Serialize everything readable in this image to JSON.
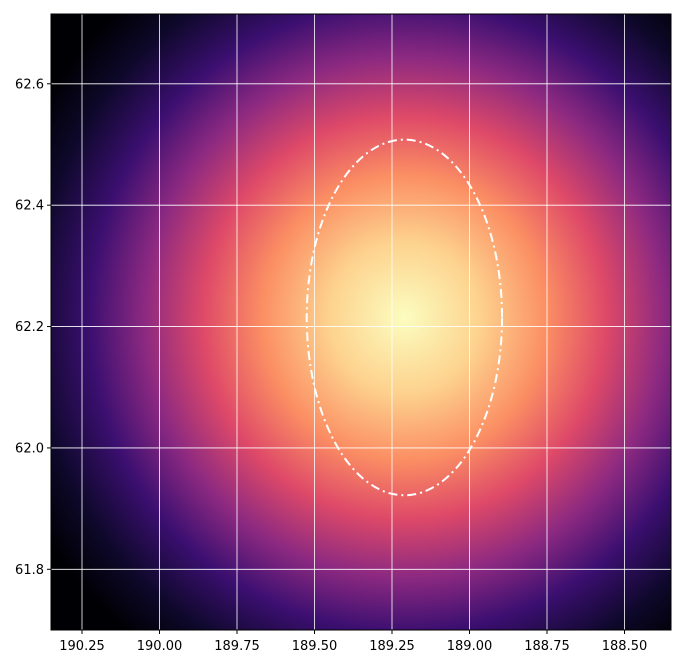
{
  "chart_data": {
    "type": "heatmap",
    "title": "",
    "xlabel": "",
    "ylabel": "",
    "xlim": [
      190.35,
      188.35
    ],
    "ylim": [
      61.7,
      62.715
    ],
    "x_axis_inverted": true,
    "x_ticks": [
      {
        "value": 190.25,
        "label": "190.25"
      },
      {
        "value": 190.0,
        "label": "190.00"
      },
      {
        "value": 189.75,
        "label": "189.75"
      },
      {
        "value": 189.5,
        "label": "189.50"
      },
      {
        "value": 189.25,
        "label": "189.25"
      },
      {
        "value": 189.0,
        "label": "189.00"
      },
      {
        "value": 188.75,
        "label": "188.75"
      },
      {
        "value": 188.5,
        "label": "188.50"
      }
    ],
    "y_ticks": [
      {
        "value": 61.8,
        "label": "61.8"
      },
      {
        "value": 62.0,
        "label": "62.0"
      },
      {
        "value": 62.2,
        "label": "62.2"
      },
      {
        "value": 62.4,
        "label": "62.4"
      },
      {
        "value": 62.6,
        "label": "62.6"
      }
    ],
    "grid": true,
    "grid_color": "#ffffff",
    "colormap": "magma",
    "colormap_stops": [
      "#000004",
      "#3b0f70",
      "#8c2981",
      "#de4968",
      "#fe9f6d",
      "#fcfdbf"
    ],
    "peak": {
      "x": 189.21,
      "y": 62.215
    },
    "contour": {
      "shape": "ellipse",
      "center_x": 189.21,
      "center_y": 62.215,
      "half_width_x": 0.315,
      "half_height_y": 0.293,
      "line_style": "dash-dot",
      "color": "#ffffff"
    }
  }
}
